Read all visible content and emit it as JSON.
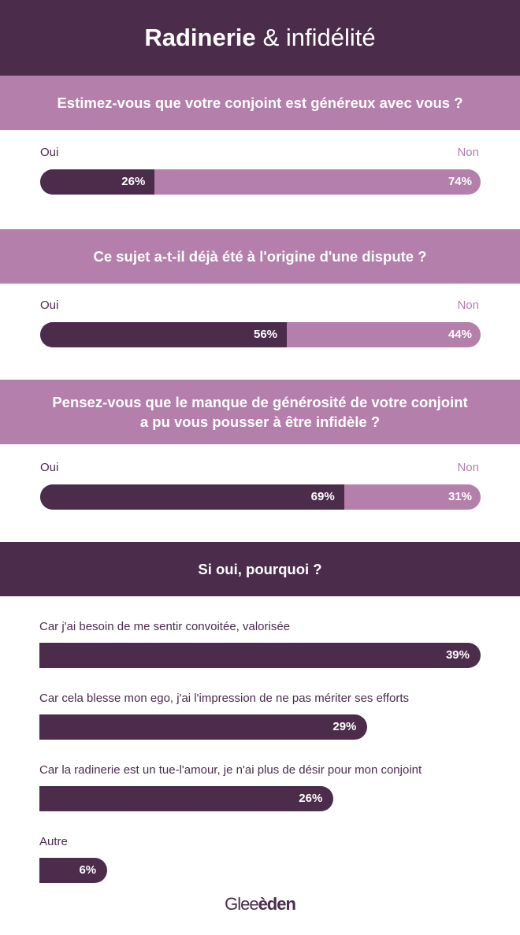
{
  "header": {
    "title_bold": "Radinerie",
    "title_rest": "& infidélité"
  },
  "colors": {
    "dark": "#4c2c4b",
    "light": "#b47fab",
    "white": "#ffffff"
  },
  "chart_data": [
    {
      "type": "bar",
      "title": "Estimez-vous que votre conjoint est généreux avec vous ?",
      "categories": [
        "Oui",
        "Non"
      ],
      "values": [
        26,
        74
      ],
      "value_labels": [
        "26%",
        "74%"
      ]
    },
    {
      "type": "bar",
      "title": "Ce sujet a-t-il déjà été à l'origine d'une dispute ?",
      "categories": [
        "Oui",
        "Non"
      ],
      "values": [
        56,
        44
      ],
      "value_labels": [
        "56%",
        "44%"
      ]
    },
    {
      "type": "bar",
      "title": "Pensez-vous que le manque de générosité de votre conjoint a pu vous pousser à être infidèle ?",
      "title_lines": [
        "Pensez-vous que le manque de générosité de votre conjoint",
        "a pu vous pousser à être infidèle ?"
      ],
      "categories": [
        "Oui",
        "Non"
      ],
      "values": [
        69,
        31
      ],
      "value_labels": [
        "69%",
        "31%"
      ]
    },
    {
      "type": "bar",
      "title": "Si oui, pourquoi ?",
      "categories": [
        "Car j'ai besoin de me sentir convoitée, valorisée",
        "Car cela blesse mon ego, j'ai l'impression de ne pas mériter ses efforts",
        "Car la radinerie est un tue-l'amour, je n'ai plus de désir pour mon conjoint",
        "Autre"
      ],
      "values": [
        39,
        29,
        26,
        6
      ],
      "value_labels": [
        "39%",
        "29%",
        "26%",
        "6%"
      ]
    }
  ],
  "logo": {
    "part1": "Glee",
    "part2": "èden"
  }
}
